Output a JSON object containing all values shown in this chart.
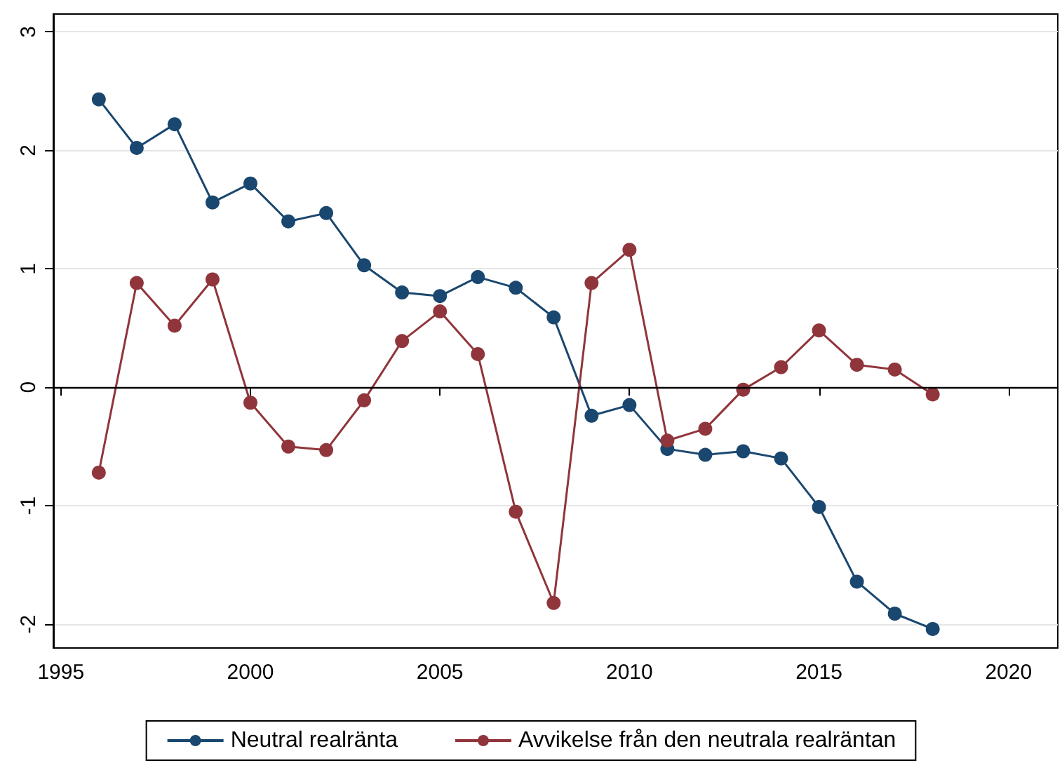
{
  "chart_data": {
    "type": "line",
    "x": [
      1996,
      1997,
      1998,
      1999,
      2000,
      2001,
      2002,
      2003,
      2004,
      2005,
      2006,
      2007,
      2008,
      2009,
      2010,
      2011,
      2012,
      2013,
      2014,
      2015,
      2016,
      2017,
      2018
    ],
    "series": [
      {
        "name": "Neutral realränta",
        "color": "#1a476f",
        "values": [
          2.43,
          2.02,
          2.22,
          1.56,
          1.72,
          1.4,
          1.47,
          1.03,
          0.8,
          0.77,
          0.93,
          0.84,
          0.59,
          -0.24,
          -0.15,
          -0.52,
          -0.57,
          -0.54,
          -0.6,
          -1.01,
          -1.64,
          -1.91,
          -2.04
        ]
      },
      {
        "name": "Avvikelse från den neutrala realräntan",
        "color": "#90353b",
        "values": [
          -0.72,
          0.88,
          0.52,
          0.91,
          -0.13,
          -0.5,
          -0.53,
          -0.11,
          0.39,
          0.64,
          0.28,
          -1.05,
          -1.82,
          0.88,
          1.16,
          -0.45,
          -0.35,
          -0.02,
          0.17,
          0.48,
          0.19,
          0.15,
          -0.06
        ]
      }
    ],
    "xlim": [
      1994.8,
      2021.3
    ],
    "xticks": [
      1995,
      2000,
      2005,
      2010,
      2015,
      2020
    ],
    "ylim": [
      -2.2,
      3.15
    ],
    "yticks": [
      -2,
      -1,
      0,
      1,
      2,
      3
    ],
    "ref_lines": [
      {
        "axis": "y",
        "value": 0,
        "color": "#000000"
      }
    ],
    "grid": "y",
    "legend": "bottom",
    "marker": "circle",
    "line_style": "solid"
  }
}
